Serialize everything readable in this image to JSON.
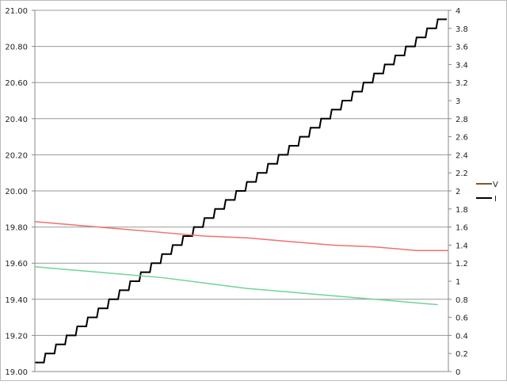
{
  "chart_data": {
    "type": "line",
    "title": "",
    "xlabel": "",
    "ylabel": "",
    "y_left": {
      "range": [
        19.0,
        21.0
      ],
      "step": 0.2,
      "ticks": [
        "19.00",
        "19.20",
        "19.40",
        "19.60",
        "19.80",
        "20.00",
        "20.20",
        "20.40",
        "20.60",
        "20.80",
        "21.00"
      ]
    },
    "y_right": {
      "range": [
        0,
        4
      ],
      "step": 0.2,
      "ticks": [
        "0",
        "0.2",
        "0.4",
        "0.6",
        "0.8",
        "1",
        "1.2",
        "1.4",
        "1.6",
        "1.8",
        "2",
        "2.2",
        "2.4",
        "2.6",
        "2.8",
        "3",
        "3.2",
        "3.4",
        "3.6",
        "3.8",
        "4"
      ]
    },
    "x_range": [
      0,
      39
    ],
    "grid": true,
    "legend_position": "right",
    "legend": [
      {
        "name": "V",
        "color": "#7a5a2a"
      },
      {
        "name": "I",
        "color": "#000000"
      }
    ],
    "series": [
      {
        "name": "I",
        "axis": "right",
        "color": "#000000",
        "type": "step",
        "values": [
          0.1,
          0.2,
          0.3,
          0.4,
          0.5,
          0.6,
          0.7,
          0.8,
          0.9,
          1.0,
          1.1,
          1.2,
          1.3,
          1.4,
          1.5,
          1.6,
          1.7,
          1.8,
          1.9,
          2.0,
          2.1,
          2.2,
          2.3,
          2.4,
          2.5,
          2.6,
          2.7,
          2.8,
          2.9,
          3.0,
          3.1,
          3.2,
          3.3,
          3.4,
          3.5,
          3.6,
          3.7,
          3.8,
          3.9
        ]
      },
      {
        "axis": "left",
        "color": "#f07070",
        "x": [
          0,
          4,
          8,
          12,
          16,
          20,
          24,
          28,
          32,
          36,
          39
        ],
        "y": [
          19.83,
          19.81,
          19.79,
          19.77,
          19.75,
          19.74,
          19.72,
          19.7,
          19.69,
          19.67,
          19.67
        ]
      },
      {
        "axis": "left",
        "color": "#6fd39a",
        "x": [
          0,
          4,
          8,
          12,
          16,
          20,
          24,
          28,
          32,
          36,
          38
        ],
        "y": [
          19.58,
          19.56,
          19.54,
          19.52,
          19.49,
          19.46,
          19.44,
          19.42,
          19.4,
          19.38,
          19.37
        ]
      }
    ]
  }
}
